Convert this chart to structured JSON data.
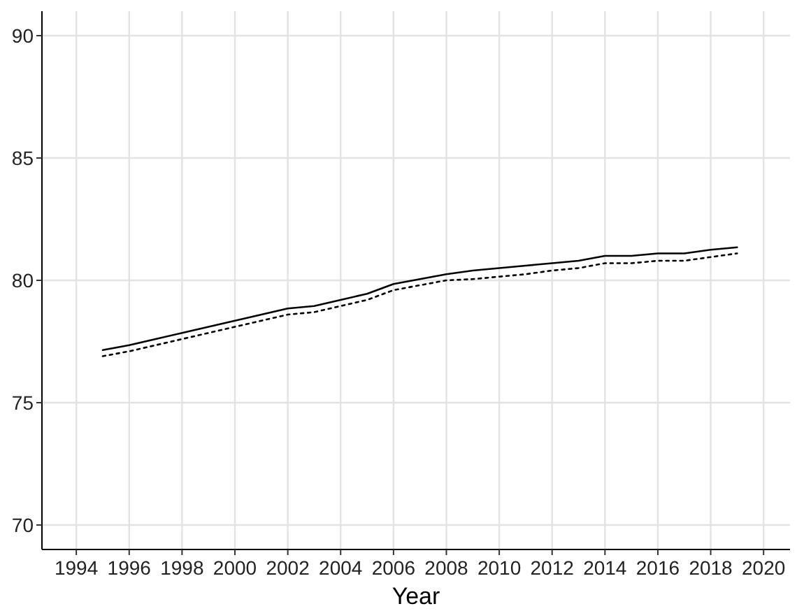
{
  "chart_data": {
    "type": "line",
    "xlabel": "Year",
    "x": [
      1995,
      1996,
      1997,
      1998,
      1999,
      2000,
      2001,
      2002,
      2003,
      2004,
      2005,
      2006,
      2007,
      2008,
      2009,
      2010,
      2011,
      2012,
      2013,
      2014,
      2015,
      2016,
      2017,
      2018,
      2019
    ],
    "series": [
      {
        "color": "#000000",
        "line_style": "solid",
        "values": [
          77.15,
          77.35,
          77.6,
          77.85,
          78.1,
          78.35,
          78.6,
          78.85,
          78.95,
          79.2,
          79.45,
          79.85,
          80.05,
          80.25,
          80.4,
          80.5,
          80.6,
          80.7,
          80.8,
          81.0,
          81.0,
          81.1,
          81.1,
          81.25,
          81.35
        ]
      },
      {
        "color": "#000000",
        "line_style": "dotted",
        "values": [
          76.9,
          77.1,
          77.35,
          77.6,
          77.85,
          78.1,
          78.35,
          78.6,
          78.7,
          78.95,
          79.2,
          79.6,
          79.8,
          80.0,
          80.05,
          80.15,
          80.25,
          80.4,
          80.5,
          80.7,
          80.7,
          80.8,
          80.8,
          80.95,
          81.1
        ]
      }
    ],
    "xlim": [
      1992.7,
      2021
    ],
    "xticks": [
      1994,
      1996,
      1998,
      2000,
      2002,
      2004,
      2006,
      2008,
      2010,
      2012,
      2014,
      2016,
      2018,
      2020
    ],
    "ylim": [
      69,
      91
    ],
    "yticks": [
      70,
      75,
      80,
      85,
      90
    ],
    "grid": true
  }
}
